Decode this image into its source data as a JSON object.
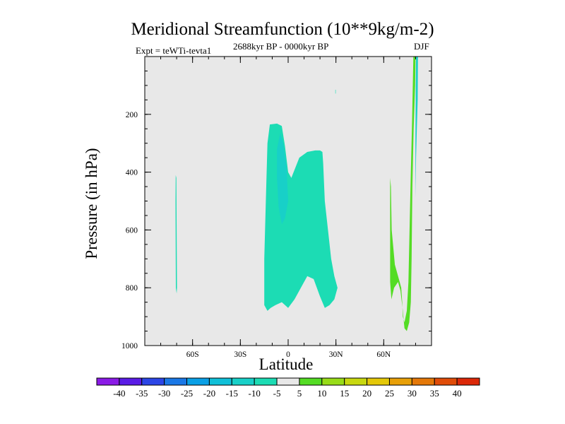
{
  "chart_data": {
    "type": "contour",
    "title": "Meridional Streamfunction (10**9kg/m-2)",
    "experiment_label": "Expt = teWTi-tevta1",
    "period_label": "2688kyr BP - 0000kyr BP",
    "season_label": "DJF",
    "xlabel": "Latitude",
    "ylabel": "Pressure (in hPa)",
    "xlim": [
      -90,
      90
    ],
    "ylim": [
      1000,
      0
    ],
    "x_ticks": [
      {
        "value": -60,
        "label": "60S"
      },
      {
        "value": -30,
        "label": "30S"
      },
      {
        "value": 0,
        "label": "0"
      },
      {
        "value": 30,
        "label": "30N"
      },
      {
        "value": 60,
        "label": "60N"
      }
    ],
    "y_ticks": [
      {
        "value": 200,
        "label": "200"
      },
      {
        "value": 400,
        "label": "400"
      },
      {
        "value": 600,
        "label": "600"
      },
      {
        "value": 800,
        "label": "800"
      },
      {
        "value": 1000,
        "label": "1000"
      }
    ],
    "background_color": "#e8e8e8",
    "colorbar": {
      "colors": [
        "#8a1ae6",
        "#5a1ce6",
        "#2c46e6",
        "#1a78e6",
        "#0aa0e6",
        "#10c0d8",
        "#18d0c8",
        "#1cdcb4",
        "#e8e8e8",
        "#54dc24",
        "#98dc18",
        "#c8d810",
        "#e4c808",
        "#e8a008",
        "#e47808",
        "#e04c08",
        "#dc2808"
      ],
      "labels": [
        "-40",
        "-35",
        "-30",
        "-25",
        "-20",
        "-15",
        "-10",
        "-5",
        "5",
        "10",
        "15",
        "20",
        "25",
        "30",
        "35",
        "40"
      ]
    },
    "regions": [
      {
        "name": "neg-5-60s-strip",
        "level": -5,
        "color": "#1cdcb4",
        "points": [
          [
            -70.6,
            410
          ],
          [
            -70.2,
            420
          ],
          [
            -70.0,
            600
          ],
          [
            -69.8,
            800
          ],
          [
            -70.0,
            820
          ],
          [
            -70.5,
            800
          ],
          [
            -70.7,
            500
          ]
        ]
      },
      {
        "name": "neg-5-tropics",
        "level": -5,
        "color": "#1cdcb4",
        "points": [
          [
            -11.5,
            235
          ],
          [
            -7,
            232
          ],
          [
            -4,
            240
          ],
          [
            -2,
            310
          ],
          [
            0,
            400
          ],
          [
            2,
            420
          ],
          [
            7,
            350
          ],
          [
            12,
            330
          ],
          [
            17,
            325
          ],
          [
            20,
            325
          ],
          [
            21.5,
            330
          ],
          [
            22,
            370
          ],
          [
            23,
            500
          ],
          [
            25,
            600
          ],
          [
            27,
            700
          ],
          [
            29,
            760
          ],
          [
            31,
            800
          ],
          [
            29,
            840
          ],
          [
            26,
            860
          ],
          [
            23,
            870
          ],
          [
            20,
            830
          ],
          [
            16,
            770
          ],
          [
            12,
            760
          ],
          [
            8,
            800
          ],
          [
            4,
            840
          ],
          [
            0,
            870
          ],
          [
            -4,
            850
          ],
          [
            -8,
            860
          ],
          [
            -11,
            870
          ],
          [
            -13,
            880
          ],
          [
            -15,
            860
          ],
          [
            -15,
            700
          ],
          [
            -14,
            500
          ],
          [
            -13,
            300
          ]
        ]
      },
      {
        "name": "neg-10-tropics",
        "level": -10,
        "color": "#18d0c8",
        "points": [
          [
            -5,
            265
          ],
          [
            -3,
            300
          ],
          [
            -1,
            380
          ],
          [
            0,
            500
          ],
          [
            -2,
            560
          ],
          [
            -4,
            580
          ],
          [
            -6,
            520
          ],
          [
            -7,
            420
          ],
          [
            -7,
            320
          ]
        ]
      },
      {
        "name": "neg-5-30n-dot",
        "level": -5,
        "color": "#1cdcb4",
        "points": [
          [
            29.6,
            115
          ],
          [
            29.9,
            115
          ],
          [
            29.9,
            128
          ],
          [
            29.6,
            128
          ]
        ]
      },
      {
        "name": "neg-10-80n-strip",
        "level": -10,
        "color": "#18d0c8",
        "points": [
          [
            80.3,
            0
          ],
          [
            81.5,
            0
          ],
          [
            81.3,
            150
          ],
          [
            80.8,
            250
          ],
          [
            80.3,
            350
          ],
          [
            80,
            490
          ],
          [
            79.9,
            300
          ],
          [
            80.1,
            100
          ]
        ]
      },
      {
        "name": "pos-5-northern-cell",
        "level": 5,
        "color": "#54dc24",
        "points": [
          [
            64,
            420
          ],
          [
            64.5,
            450
          ],
          [
            65,
            600
          ],
          [
            67,
            720
          ],
          [
            70,
            780
          ],
          [
            71,
            800
          ],
          [
            71.6,
            850
          ],
          [
            72,
            900
          ],
          [
            73,
            920
          ],
          [
            74.5,
            880
          ],
          [
            75.5,
            780
          ],
          [
            76.2,
            600
          ],
          [
            77,
            400
          ],
          [
            77.8,
            220
          ],
          [
            78.6,
            0
          ],
          [
            80,
            0
          ],
          [
            79.7,
            100
          ],
          [
            78.8,
            250
          ],
          [
            78,
            450
          ],
          [
            77.5,
            700
          ],
          [
            77,
            850
          ],
          [
            76,
            920
          ],
          [
            74.5,
            950
          ],
          [
            73,
            940
          ],
          [
            72.5,
            910
          ],
          [
            72,
            880
          ],
          [
            70.5,
            810
          ],
          [
            69,
            780
          ],
          [
            66.5,
            800
          ],
          [
            64.8,
            840
          ],
          [
            64,
            780
          ]
        ]
      }
    ]
  }
}
